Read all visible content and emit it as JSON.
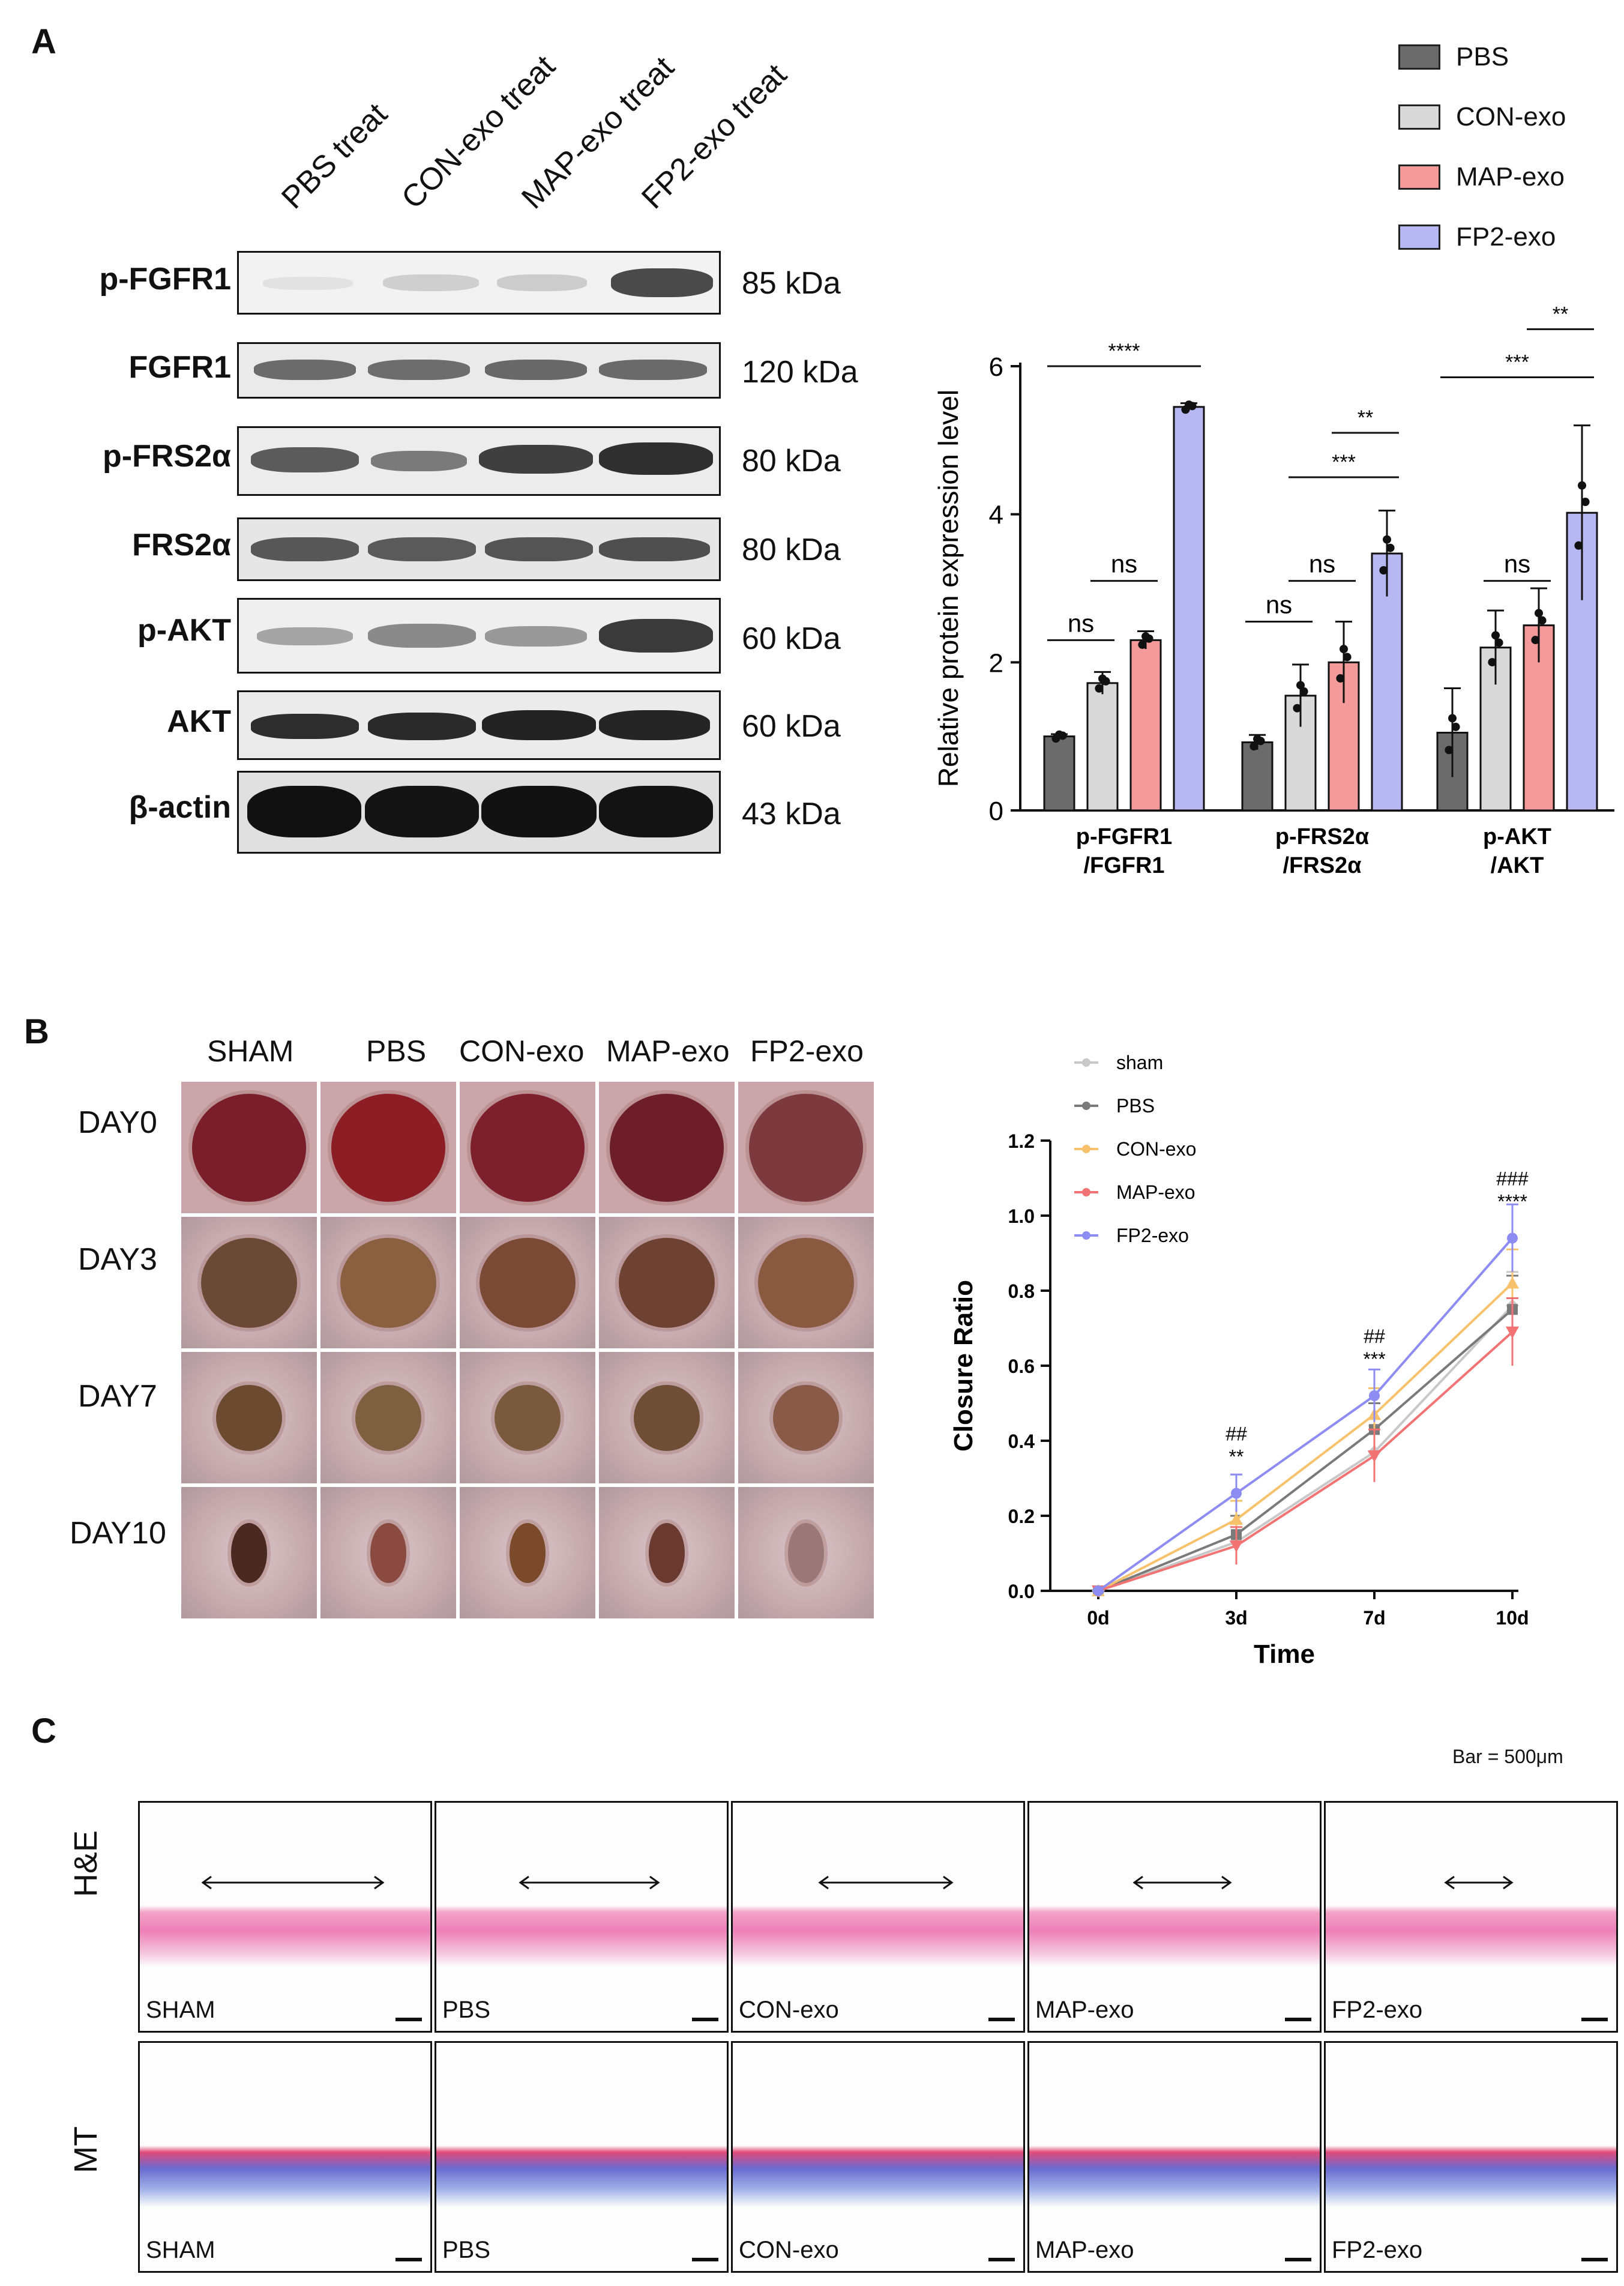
{
  "panels": {
    "a": "A",
    "b": "B",
    "c": "C"
  },
  "western": {
    "lanes": [
      "PBS treat",
      "CON-exo treat",
      "MAP-exo treat",
      "FP2-exo treat"
    ],
    "rows": [
      {
        "protein": "p-FGFR1",
        "kda": "85 kDa"
      },
      {
        "protein": "FGFR1",
        "kda": "120 kDa"
      },
      {
        "protein": "p-FRS2α",
        "kda": "80 kDa"
      },
      {
        "protein": "FRS2α",
        "kda": "80 kDa"
      },
      {
        "protein": "p-AKT",
        "kda": "60 kDa"
      },
      {
        "protein": "AKT",
        "kda": "60 kDa"
      },
      {
        "protein": "β-actin",
        "kda": "43 kDa"
      }
    ]
  },
  "legend": [
    {
      "label": "PBS",
      "color": "#6b6b6b"
    },
    {
      "label": "CON-exo",
      "color": "#d9d9d9"
    },
    {
      "label": "MAP-exo",
      "color": "#f59a9a"
    },
    {
      "label": "FP2-exo",
      "color": "#b7b7f2"
    }
  ],
  "chart_data": [
    {
      "type": "bar",
      "ylabel": "Relative protein expression level",
      "ylim": [
        0,
        6
      ],
      "yticks": [
        "0",
        "2",
        "4",
        "6"
      ],
      "categories": [
        "p-FGFR1\n/FGFR1",
        "p-FRS2α\n/FRS2α",
        "p-AKT\n/AKT"
      ],
      "series": [
        {
          "name": "PBS",
          "values": [
            1.0,
            0.92,
            1.05
          ],
          "errors": [
            0.03,
            0.1,
            0.6
          ],
          "color": "#6b6b6b"
        },
        {
          "name": "CON-exo",
          "values": [
            1.72,
            1.55,
            2.2
          ],
          "errors": [
            0.15,
            0.42,
            0.5
          ],
          "color": "#d9d9d9"
        },
        {
          "name": "MAP-exo",
          "values": [
            2.3,
            2.0,
            2.5
          ],
          "errors": [
            0.12,
            0.55,
            0.5
          ],
          "color": "#f59a9a"
        },
        {
          "name": "FP2-exo",
          "values": [
            5.45,
            3.47,
            4.02
          ],
          "errors": [
            0.05,
            0.58,
            1.18
          ],
          "color": "#b7b7f2"
        }
      ],
      "significance": [
        {
          "group": 0,
          "from": 0,
          "to": 1,
          "label": "ns",
          "y": 2.3
        },
        {
          "group": 0,
          "from": 1,
          "to": 2,
          "label": "ns",
          "y": 3.1
        },
        {
          "group": 0,
          "from": 0,
          "to": 3,
          "label": "****",
          "y": 6.0
        },
        {
          "group": 1,
          "from": 0,
          "to": 1,
          "label": "ns",
          "y": 2.55
        },
        {
          "group": 1,
          "from": 1,
          "to": 2,
          "label": "ns",
          "y": 3.1
        },
        {
          "group": 1,
          "from": 1,
          "to": 3,
          "label": "***",
          "y": 4.5
        },
        {
          "group": 1,
          "from": 2,
          "to": 3,
          "label": "**",
          "y": 5.1
        },
        {
          "group": 2,
          "from": 1,
          "to": 2,
          "label": "ns",
          "y": 3.1
        },
        {
          "group": 2,
          "from": 0,
          "to": 3,
          "label": "***",
          "y": 5.85
        },
        {
          "group": 2,
          "from": 2,
          "to": 3,
          "label": "**",
          "y": 6.5
        }
      ]
    },
    {
      "type": "line",
      "xlabel": "Time",
      "ylabel": "Closure Ratio",
      "x": [
        "0d",
        "3d",
        "7d",
        "10d"
      ],
      "ylim": [
        0,
        1.2
      ],
      "yticks": [
        "0.0",
        "0.2",
        "0.4",
        "0.6",
        "0.8",
        "1.0",
        "1.2"
      ],
      "series": [
        {
          "name": "sham",
          "values": [
            0,
            0.13,
            0.37,
            0.76
          ],
          "color": "#c8c8c8",
          "marker": "diamond"
        },
        {
          "name": "PBS",
          "values": [
            0,
            0.15,
            0.43,
            0.75
          ],
          "color": "#7a7a7a",
          "marker": "square"
        },
        {
          "name": "CON-exo",
          "values": [
            0,
            0.19,
            0.47,
            0.82
          ],
          "color": "#f7c26b",
          "marker": "triangle"
        },
        {
          "name": "MAP-exo",
          "values": [
            0,
            0.12,
            0.36,
            0.69
          ],
          "color": "#f27373",
          "marker": "triangle-down"
        },
        {
          "name": "FP2-exo",
          "values": [
            0,
            0.26,
            0.52,
            0.94
          ],
          "color": "#8c8cf2",
          "marker": "circle"
        }
      ],
      "annotations": [
        {
          "x": "3d",
          "lines": [
            "##",
            "**"
          ]
        },
        {
          "x": "7d",
          "lines": [
            "##",
            "***"
          ]
        },
        {
          "x": "10d",
          "lines": [
            "###",
            "****"
          ]
        }
      ]
    }
  ],
  "wound": {
    "columns": [
      "SHAM",
      "PBS",
      "CON-exo",
      "MAP-exo",
      "FP2-exo"
    ],
    "rows": [
      "DAY0",
      "DAY3",
      "DAY7",
      "DAY10"
    ]
  },
  "histology": {
    "scale_text": "Bar = 500μm",
    "rows": [
      "H&E",
      "MT"
    ],
    "labels": [
      "SHAM",
      "PBS",
      "CON-exo",
      "MAP-exo",
      "FP2-exo"
    ]
  }
}
